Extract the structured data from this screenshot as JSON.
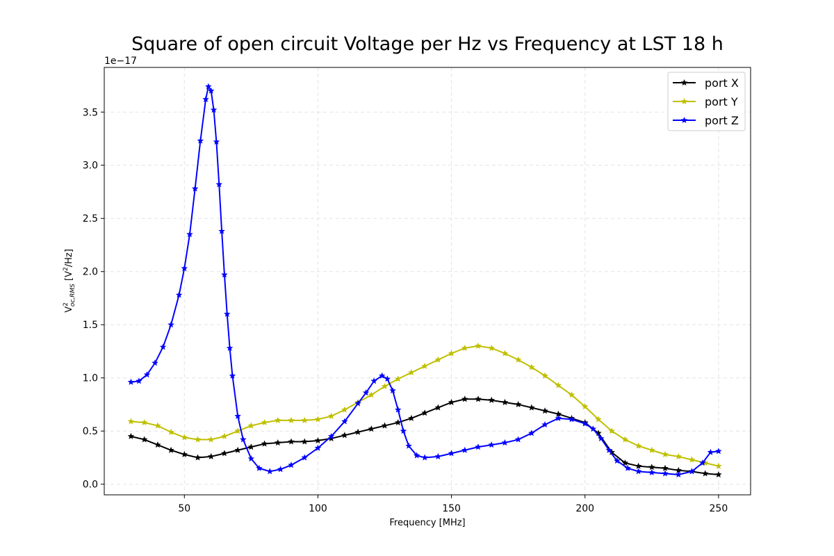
{
  "chart_data": {
    "type": "line",
    "title": "Square of open circuit Voltage per Hz vs Frequency at LST 18 h",
    "xlabel": "Frequency [MHz]",
    "ylabel": {
      "main": "V",
      "superscript": "2",
      "subscript": "oc,RMS",
      "unit_pre": " [V",
      "unit_sup": "2",
      "unit_post": "/Hz]"
    },
    "offset_text": "1e−17",
    "xlim": [
      20,
      262
    ],
    "ylim": [
      -0.1,
      3.92
    ],
    "xticks": [
      50,
      100,
      150,
      200,
      250
    ],
    "xtick_labels": [
      "50",
      "100",
      "150",
      "200",
      "250"
    ],
    "yticks": [
      0.0,
      0.5,
      1.0,
      1.5,
      2.0,
      2.5,
      3.0,
      3.5
    ],
    "ytick_labels": [
      "0.0",
      "0.5",
      "1.0",
      "1.5",
      "2.0",
      "2.5",
      "3.0",
      "3.5"
    ],
    "grid": true,
    "legend_position": "top-right",
    "marker": "star",
    "series": [
      {
        "name": "port X",
        "color": "#000000",
        "x": [
          30,
          35,
          40,
          45,
          50,
          55,
          60,
          65,
          70,
          75,
          80,
          85,
          90,
          95,
          100,
          105,
          110,
          115,
          120,
          125,
          130,
          135,
          140,
          145,
          150,
          155,
          160,
          165,
          170,
          175,
          180,
          185,
          190,
          195,
          200,
          205,
          210,
          215,
          220,
          225,
          230,
          235,
          240,
          245,
          250
        ],
        "values": [
          0.45,
          0.42,
          0.37,
          0.32,
          0.28,
          0.25,
          0.26,
          0.29,
          0.32,
          0.35,
          0.38,
          0.39,
          0.4,
          0.4,
          0.41,
          0.43,
          0.46,
          0.49,
          0.52,
          0.55,
          0.58,
          0.62,
          0.67,
          0.72,
          0.77,
          0.8,
          0.8,
          0.79,
          0.77,
          0.75,
          0.72,
          0.69,
          0.66,
          0.62,
          0.58,
          0.48,
          0.3,
          0.2,
          0.17,
          0.16,
          0.15,
          0.13,
          0.12,
          0.1,
          0.09
        ]
      },
      {
        "name": "port Y",
        "color": "#bfbf00",
        "x": [
          30,
          35,
          40,
          45,
          50,
          55,
          60,
          65,
          70,
          75,
          80,
          85,
          90,
          95,
          100,
          105,
          110,
          115,
          120,
          125,
          130,
          135,
          140,
          145,
          150,
          155,
          160,
          165,
          170,
          175,
          180,
          185,
          190,
          195,
          200,
          205,
          210,
          215,
          220,
          225,
          230,
          235,
          240,
          245,
          250
        ],
        "values": [
          0.59,
          0.58,
          0.55,
          0.49,
          0.44,
          0.42,
          0.42,
          0.45,
          0.5,
          0.55,
          0.58,
          0.6,
          0.6,
          0.6,
          0.61,
          0.64,
          0.7,
          0.77,
          0.84,
          0.92,
          0.99,
          1.05,
          1.11,
          1.17,
          1.23,
          1.28,
          1.3,
          1.28,
          1.23,
          1.17,
          1.1,
          1.02,
          0.93,
          0.84,
          0.73,
          0.61,
          0.5,
          0.42,
          0.36,
          0.32,
          0.28,
          0.26,
          0.23,
          0.2,
          0.17
        ]
      },
      {
        "name": "port Z",
        "color": "#0000ff",
        "x": [
          30,
          33,
          36,
          39,
          42,
          45,
          48,
          50,
          52,
          54,
          56,
          58,
          59,
          60,
          61,
          62,
          63,
          64,
          65,
          66,
          67,
          68,
          70,
          72,
          75,
          78,
          82,
          86,
          90,
          95,
          100,
          105,
          110,
          115,
          118,
          121,
          124,
          126,
          128,
          130,
          132,
          134,
          137,
          140,
          145,
          150,
          155,
          160,
          165,
          170,
          175,
          180,
          185,
          190,
          195,
          200,
          203,
          206,
          209,
          212,
          216,
          220,
          225,
          230,
          235,
          240,
          244,
          247,
          250
        ],
        "values": [
          0.96,
          0.97,
          1.03,
          1.14,
          1.29,
          1.5,
          1.78,
          2.03,
          2.35,
          2.78,
          3.23,
          3.62,
          3.74,
          3.7,
          3.52,
          3.22,
          2.82,
          2.38,
          1.97,
          1.6,
          1.28,
          1.02,
          0.64,
          0.42,
          0.24,
          0.15,
          0.12,
          0.14,
          0.18,
          0.25,
          0.34,
          0.45,
          0.59,
          0.76,
          0.86,
          0.97,
          1.02,
          0.99,
          0.88,
          0.7,
          0.5,
          0.36,
          0.27,
          0.25,
          0.26,
          0.29,
          0.32,
          0.35,
          0.37,
          0.39,
          0.42,
          0.48,
          0.56,
          0.62,
          0.61,
          0.57,
          0.52,
          0.43,
          0.32,
          0.22,
          0.15,
          0.12,
          0.11,
          0.1,
          0.09,
          0.12,
          0.2,
          0.3,
          0.31
        ]
      }
    ]
  }
}
